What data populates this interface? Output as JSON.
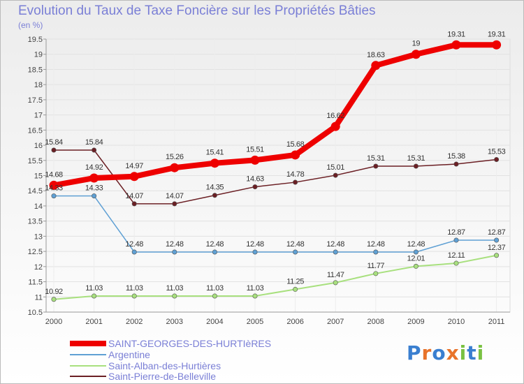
{
  "chart_data": {
    "type": "line",
    "title": "Evolution du Taux de Taxe Foncière sur les Propriétés Bâties",
    "ylabel": "(en %)",
    "xlabel": "",
    "ylim": [
      10.5,
      19.5
    ],
    "y_ticks": [
      "10.5",
      "11",
      "11.5",
      "12",
      "12.5",
      "13",
      "13.5",
      "14",
      "14.5",
      "15",
      "15.5",
      "16",
      "16.5",
      "17",
      "17.5",
      "18",
      "18.5",
      "19",
      "19.5"
    ],
    "categories": [
      "2000",
      "2001",
      "2002",
      "2003",
      "2004",
      "2005",
      "2006",
      "2007",
      "2008",
      "2009",
      "2010",
      "2011"
    ],
    "series": [
      {
        "name": "Saint-Pierre-de-Belleville",
        "color": "#6b1f24",
        "values": [
          15.84,
          15.84,
          14.07,
          14.07,
          14.35,
          14.63,
          14.78,
          15.01,
          15.31,
          15.31,
          15.38,
          15.53
        ],
        "labels": [
          "15.84",
          "15.84",
          "14.07",
          "14.07",
          "14.35",
          "14.63",
          "14.78",
          "15.01",
          "15.31",
          "15.31",
          "15.38",
          "15.53"
        ]
      },
      {
        "name": "Argentine",
        "color": "#5fa0d4",
        "values": [
          14.33,
          14.33,
          12.48,
          12.48,
          12.48,
          12.48,
          12.48,
          12.48,
          12.48,
          12.48,
          12.87,
          12.87
        ],
        "labels": [
          "14.33",
          "14.33",
          "12.48",
          "12.48",
          "12.48",
          "12.48",
          "12.48",
          "12.48",
          "12.48",
          "12.48",
          "12.87",
          "12.87"
        ]
      },
      {
        "name": "Saint-Alban-des-Hurtières",
        "color": "#a8e07e",
        "values": [
          10.92,
          11.03,
          11.03,
          11.03,
          11.03,
          11.03,
          11.25,
          11.47,
          11.77,
          12.01,
          12.11,
          12.37
        ],
        "labels": [
          "10.92",
          "11.03",
          "11.03",
          "11.03",
          "11.03",
          "11.03",
          "11.25",
          "11.47",
          "11.77",
          "12.01",
          "12.11",
          "12.37"
        ]
      },
      {
        "name": "SAINT-GEORGES-DES-HURTIèRES",
        "color": "#ee0000",
        "values": [
          14.68,
          14.92,
          14.97,
          15.26,
          15.41,
          15.51,
          15.68,
          16.62,
          18.63,
          19.0,
          19.31,
          19.31
        ],
        "labels": [
          "14.68",
          "14.92",
          "14.97",
          "15.26",
          "15.41",
          "15.51",
          "15.68",
          "16.62",
          "18.63",
          "19",
          "19.31",
          "19.31"
        ]
      }
    ],
    "legend": [
      "SAINT-GEORGES-DES-HURTIèRES",
      "Argentine",
      "Saint-Alban-des-Hurtières",
      "Saint-Pierre-de-Belleville"
    ]
  },
  "logo": {
    "text": "Proxiti",
    "letters": [
      "P",
      "r",
      "o",
      "x",
      "i",
      "t",
      "i"
    ],
    "colors": [
      "#3a7fd0",
      "#e8732a",
      "#3a7fd0",
      "#e8732a",
      "#7ac142",
      "#3a7fd0",
      "#7ac142"
    ]
  }
}
